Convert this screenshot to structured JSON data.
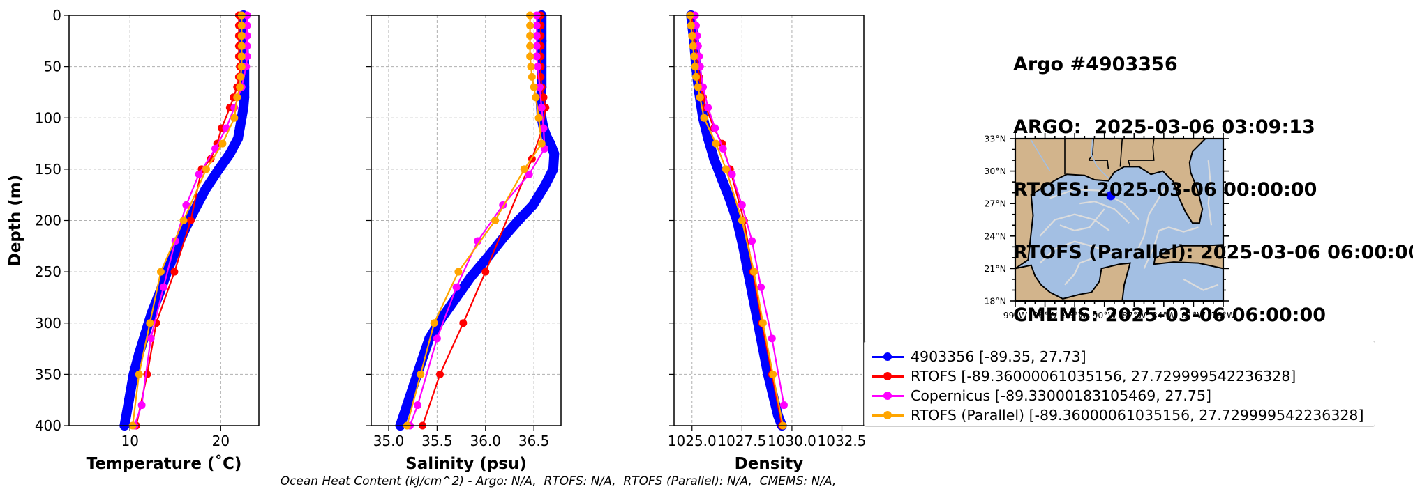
{
  "title": {
    "line1": "Argo #4903356",
    "line2": "ARGO:  2025-03-06 03:09:13",
    "line3": "RTOFS: 2025-03-06 00:00:00",
    "line4": "RTOFS (Parallel): 2025-03-06 06:00:00",
    "line5": "CMEMS: 2025-03-06 06:00:00"
  },
  "footer": "Ocean Heat Content (kJ/cm^2) - Argo: N/A,  RTOFS: N/A,  RTOFS (Parallel): N/A,  CMEMS: N/A,",
  "legend": [
    {
      "label": "4903356 [-89.35, 27.73]",
      "color": "#0000ff"
    },
    {
      "label": "RTOFS [-89.36000061035156, 27.729999542236328]",
      "color": "#ff0000"
    },
    {
      "label": "Copernicus [-89.33000183105469, 27.75]",
      "color": "#ff00ff"
    },
    {
      "label": "RTOFS (Parallel) [-89.36000061035156, 27.729999542236328]",
      "color": "#ffa500"
    }
  ],
  "map": {
    "lat_labels": [
      "33°N",
      "30°N",
      "27°N",
      "24°N",
      "21°N",
      "18°N"
    ],
    "lon_labels": [
      "99°W",
      "96°W",
      "93°W",
      "90°W",
      "87°W",
      "84°W",
      "81°W",
      "78°W"
    ],
    "lat_values": [
      33,
      30,
      27,
      24,
      21,
      18
    ],
    "lon_values": [
      -99,
      -96,
      -93,
      -90,
      -87,
      -84,
      -81,
      -78
    ],
    "float_location": {
      "lon": -89.35,
      "lat": 27.73
    },
    "colors": {
      "land": "#d2b48c",
      "ocean": "#a3bfe3",
      "currents": "#dcdcdc",
      "coast": "#000000",
      "marker": "#0000ff"
    }
  },
  "chart_data": [
    {
      "type": "line",
      "xlabel": "Temperature (˚C)",
      "ylabel": "Depth (m)",
      "xlim": [
        3.3,
        24.2
      ],
      "ylim": [
        400,
        0
      ],
      "xticks": [
        10,
        20
      ],
      "xtick_labels": [
        "10",
        "20"
      ],
      "yticks": [
        0,
        50,
        100,
        150,
        200,
        250,
        300,
        350,
        400
      ],
      "ytick_labels": [
        "0",
        "50",
        "100",
        "150",
        "200",
        "250",
        "300",
        "350",
        "400"
      ],
      "grid": true,
      "series": [
        {
          "name": "4903356",
          "color": "#0000ff",
          "style": "thick",
          "x": [
            22.5,
            22.5,
            22.6,
            22.6,
            22.6,
            22.5,
            22.3,
            22.1,
            21.9,
            21.0,
            19.8,
            18.3,
            17.1,
            16.0,
            15.0,
            14.1,
            13.3,
            12.4,
            11.7,
            11.0,
            10.4,
            9.9,
            9.4
          ],
          "y": [
            0,
            25,
            50,
            70,
            80,
            90,
            100,
            110,
            120,
            135,
            150,
            170,
            190,
            210,
            230,
            250,
            270,
            290,
            310,
            330,
            350,
            375,
            400
          ]
        },
        {
          "name": "RTOFS",
          "color": "#ff0000",
          "x": [
            22.0,
            22.0,
            22.0,
            22.0,
            22.0,
            22.1,
            22.0,
            21.8,
            21.4,
            21.0,
            20.1,
            19.6,
            18.9,
            17.9,
            16.7,
            14.9,
            12.9,
            11.9,
            10.7
          ],
          "y": [
            0,
            10,
            20,
            30,
            40,
            50,
            60,
            70,
            80,
            90,
            110,
            125,
            140,
            150,
            200,
            250,
            300,
            350,
            400
          ]
        },
        {
          "name": "Copernicus",
          "color": "#ff00ff",
          "x": [
            22.9,
            22.9,
            22.9,
            22.9,
            22.9,
            22.8,
            22.3,
            21.5,
            20.6,
            19.4,
            17.6,
            16.2,
            15.0,
            13.7,
            12.3,
            11.3,
            10.5
          ],
          "y": [
            0,
            10,
            20,
            30,
            40,
            50,
            70,
            90,
            110,
            130,
            155,
            185,
            220,
            265,
            315,
            380,
            400
          ]
        },
        {
          "name": "RTOFS (Parallel)",
          "color": "#ffa500",
          "x": [
            22.3,
            22.3,
            22.3,
            22.3,
            22.3,
            22.3,
            22.2,
            22.1,
            21.8,
            21.5,
            20.2,
            18.4,
            15.9,
            13.4,
            12.2,
            11.0,
            10.3
          ],
          "y": [
            0,
            10,
            20,
            30,
            40,
            50,
            60,
            70,
            80,
            100,
            125,
            150,
            200,
            250,
            300,
            350,
            400
          ]
        }
      ]
    },
    {
      "type": "line",
      "xlabel": "Salinity (psu)",
      "ylabel": "",
      "xlim": [
        34.82,
        36.78
      ],
      "ylim": [
        400,
        0
      ],
      "xticks": [
        35.0,
        35.5,
        36.0,
        36.5
      ],
      "xtick_labels": [
        "35.0",
        "35.5",
        "36.0",
        "36.5"
      ],
      "yticks": [
        0,
        50,
        100,
        150,
        200,
        250,
        300,
        350,
        400
      ],
      "ytick_labels": [],
      "grid": true,
      "series": [
        {
          "name": "4903356",
          "color": "#0000ff",
          "style": "thick",
          "x": [
            36.58,
            36.58,
            36.58,
            36.58,
            36.57,
            36.58,
            36.6,
            36.63,
            36.67,
            36.71,
            36.7,
            36.62,
            36.49,
            36.34,
            36.2,
            36.03,
            35.85,
            35.7,
            35.55,
            35.42,
            35.33,
            35.26,
            35.19,
            35.12
          ],
          "y": [
            0,
            25,
            50,
            70,
            85,
            100,
            110,
            118,
            125,
            135,
            150,
            165,
            185,
            200,
            215,
            235,
            255,
            275,
            295,
            315,
            340,
            360,
            380,
            400
          ]
        },
        {
          "name": "RTOFS",
          "color": "#ff0000",
          "x": [
            36.57,
            36.57,
            36.57,
            36.57,
            36.57,
            36.57,
            36.57,
            36.58,
            36.6,
            36.62,
            36.59,
            36.48,
            36.0,
            35.77,
            35.53,
            35.35
          ],
          "y": [
            0,
            10,
            20,
            30,
            40,
            50,
            60,
            70,
            80,
            90,
            110,
            140,
            250,
            300,
            350,
            400
          ]
        },
        {
          "name": "Copernicus",
          "color": "#ff00ff",
          "x": [
            36.53,
            36.53,
            36.53,
            36.53,
            36.53,
            36.54,
            36.56,
            36.58,
            36.6,
            36.61,
            36.45,
            36.18,
            35.92,
            35.7,
            35.5,
            35.3,
            35.22
          ],
          "y": [
            0,
            10,
            20,
            30,
            40,
            50,
            70,
            90,
            110,
            130,
            155,
            185,
            220,
            265,
            315,
            380,
            400
          ]
        },
        {
          "name": "RTOFS (Parallel)",
          "color": "#ffa500",
          "x": [
            36.46,
            36.46,
            36.46,
            36.46,
            36.46,
            36.47,
            36.48,
            36.5,
            36.52,
            36.55,
            36.58,
            36.4,
            36.1,
            35.72,
            35.47,
            35.33,
            35.19
          ],
          "y": [
            0,
            10,
            20,
            30,
            40,
            50,
            60,
            70,
            80,
            100,
            125,
            150,
            200,
            250,
            300,
            350,
            400
          ]
        }
      ]
    },
    {
      "type": "line",
      "xlabel": "Density",
      "ylabel": "",
      "xlim": [
        1024.1,
        1033.6
      ],
      "ylim": [
        400,
        0
      ],
      "xticks": [
        1025.0,
        1027.5,
        1030.0,
        1032.5
      ],
      "xtick_labels": [
        "1025.0",
        "1027.5",
        "1030.0",
        "1032.5"
      ],
      "yticks": [
        0,
        50,
        100,
        150,
        200,
        250,
        300,
        350,
        400
      ],
      "ytick_labels": [],
      "grid": true,
      "series": [
        {
          "name": "4903356",
          "color": "#0000ff",
          "style": "thick",
          "x": [
            1024.95,
            1025.1,
            1025.2,
            1025.35,
            1025.55,
            1025.8,
            1026.1,
            1026.5,
            1026.9,
            1027.25,
            1027.55,
            1027.8,
            1028.05,
            1028.3,
            1028.55,
            1028.8,
            1029.05,
            1029.3,
            1029.5
          ],
          "y": [
            0,
            25,
            50,
            75,
            100,
            120,
            140,
            160,
            180,
            200,
            225,
            250,
            275,
            300,
            325,
            350,
            370,
            390,
            400
          ]
        },
        {
          "name": "RTOFS",
          "color": "#ff0000",
          "x": [
            1024.95,
            1025.05,
            1025.1,
            1025.15,
            1025.25,
            1025.3,
            1025.35,
            1025.45,
            1025.55,
            1025.7,
            1026.1,
            1026.5,
            1026.9,
            1027.6,
            1028.05,
            1028.5,
            1029.0,
            1029.5
          ],
          "y": [
            0,
            10,
            20,
            30,
            40,
            50,
            60,
            70,
            80,
            90,
            110,
            125,
            150,
            200,
            250,
            300,
            350,
            400
          ]
        },
        {
          "name": "Copernicus",
          "color": "#ff00ff",
          "x": [
            1025.15,
            1025.2,
            1025.25,
            1025.3,
            1025.35,
            1025.4,
            1025.55,
            1025.8,
            1026.15,
            1026.55,
            1027.0,
            1027.5,
            1028.0,
            1028.45,
            1029.0,
            1029.6
          ],
          "y": [
            0,
            10,
            20,
            30,
            40,
            50,
            70,
            90,
            110,
            130,
            155,
            185,
            220,
            265,
            315,
            380
          ]
        },
        {
          "name": "RTOFS (Parallel)",
          "color": "#ffa500",
          "x": [
            1024.9,
            1024.95,
            1025.0,
            1025.05,
            1025.1,
            1025.15,
            1025.2,
            1025.3,
            1025.4,
            1025.6,
            1026.2,
            1026.7,
            1027.5,
            1028.1,
            1028.55,
            1029.05,
            1029.55
          ],
          "y": [
            0,
            10,
            20,
            30,
            40,
            50,
            60,
            70,
            80,
            100,
            125,
            150,
            200,
            250,
            300,
            350,
            400
          ]
        }
      ]
    }
  ]
}
